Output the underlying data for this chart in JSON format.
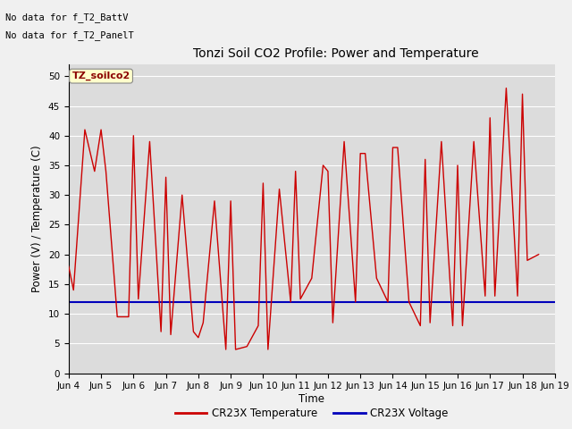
{
  "title": "Tonzi Soil CO2 Profile: Power and Temperature",
  "ylabel": "Power (V) / Temperature (C)",
  "xlabel": "Time",
  "top_text_line1": "No data for f_T2_BattV",
  "top_text_line2": "No data for f_T2_PanelT",
  "box_label": "TZ_soilco2",
  "ylim": [
    0,
    52
  ],
  "yticks": [
    0,
    5,
    10,
    15,
    20,
    25,
    30,
    35,
    40,
    45,
    50
  ],
  "voltage_value": 12.0,
  "voltage_color": "#0000bb",
  "temp_color": "#cc0000",
  "legend_temp": "CR23X Temperature",
  "legend_voltage": "CR23X Voltage",
  "background_color": "#dcdcdc",
  "fig_bg_color": "#f0f0f0",
  "temp_data_x": [
    4.0,
    4.15,
    4.5,
    4.8,
    5.0,
    5.15,
    5.5,
    5.85,
    6.0,
    6.15,
    6.5,
    6.85,
    7.0,
    7.15,
    7.5,
    7.85,
    8.0,
    8.15,
    8.5,
    8.85,
    9.0,
    9.15,
    9.5,
    9.85,
    10.0,
    10.15,
    10.5,
    10.85,
    11.0,
    11.15,
    11.5,
    11.85,
    12.0,
    12.15,
    12.5,
    12.85,
    13.0,
    13.15,
    13.5,
    13.85,
    14.0,
    14.15,
    14.5,
    14.85,
    15.0,
    15.15,
    15.5,
    15.85,
    16.0,
    16.15,
    16.5,
    16.85,
    17.0,
    17.15,
    17.5,
    17.85,
    18.0,
    18.15,
    18.5
  ],
  "temp_data_y": [
    18,
    14,
    41,
    34,
    41,
    34,
    9.5,
    9.5,
    40,
    12.5,
    39,
    7,
    33,
    6.5,
    30,
    7,
    6,
    8.5,
    29,
    4,
    29,
    4,
    4.5,
    8,
    32,
    4,
    31,
    12,
    34,
    12.5,
    16,
    35,
    34,
    8.5,
    39,
    12,
    37,
    37,
    16,
    12,
    38,
    38,
    12,
    8,
    36,
    8.5,
    39,
    8,
    35,
    8,
    39,
    13,
    43,
    13,
    48,
    13,
    47,
    19,
    20
  ],
  "xtick_positions": [
    4,
    5,
    6,
    7,
    8,
    9,
    10,
    11,
    12,
    13,
    14,
    15,
    16,
    17,
    18,
    19
  ],
  "xtick_labels": [
    "Jun 4",
    "Jun 5",
    "Jun 6",
    "Jun 7",
    "Jun 8",
    "Jun 9",
    "Jun 10",
    "Jun 11",
    "Jun 12",
    "Jun 13",
    "Jun 14",
    "Jun 15",
    "Jun 16",
    "Jun 17",
    "Jun 18",
    "Jun 19"
  ]
}
